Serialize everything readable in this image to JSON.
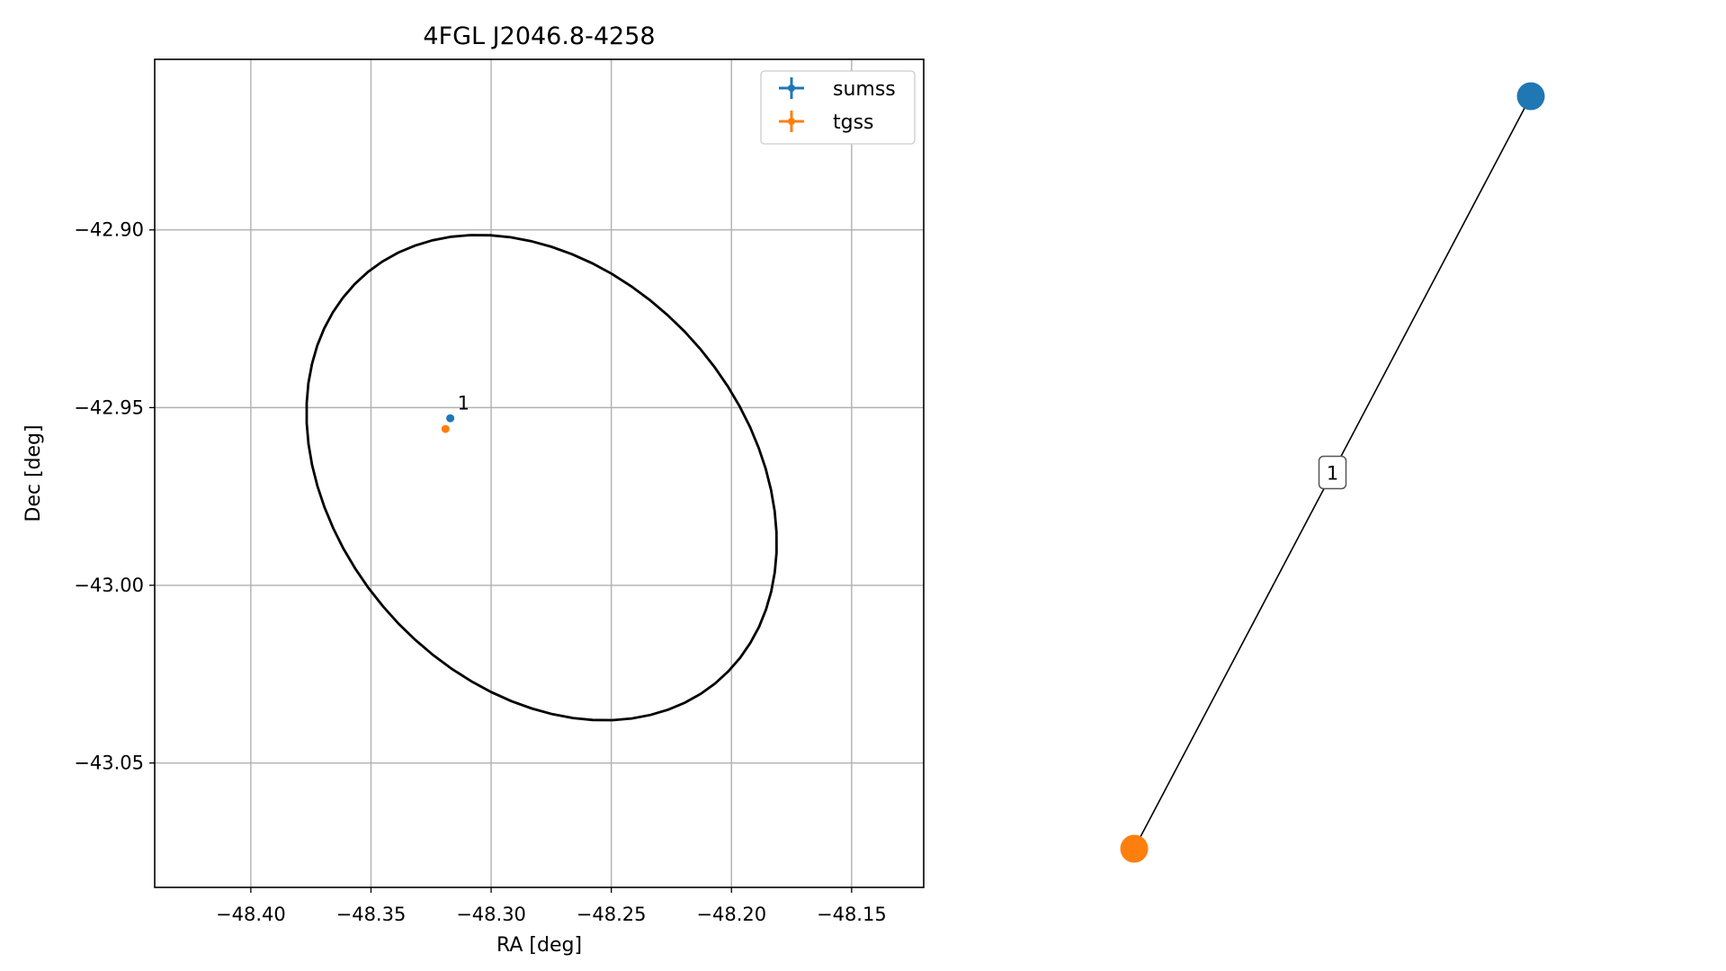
{
  "chart_data": [
    {
      "type": "scatter",
      "title": "4FGL J2046.8-4258",
      "xlabel": "RA [deg]",
      "ylabel": "Dec [deg]",
      "xlim": [
        -48.44,
        -48.12
      ],
      "ylim": [
        -43.085,
        -42.852
      ],
      "xticks": [
        -48.4,
        -48.35,
        -48.3,
        -48.25,
        -48.2,
        -48.15
      ],
      "xtick_labels": [
        "−48.40",
        "−48.35",
        "−48.30",
        "−48.25",
        "−48.20",
        "−48.15"
      ],
      "yticks": [
        -42.9,
        -42.95,
        -43.0,
        -43.05
      ],
      "ytick_labels": [
        "−42.90",
        "−42.95",
        "−43.00",
        "−43.05"
      ],
      "grid": true,
      "legend_position": "top-right",
      "series": [
        {
          "name": "sumss",
          "color": "#1f77b4",
          "marker": "errorbar",
          "points": [
            {
              "x": -48.317,
              "y": -42.953
            }
          ]
        },
        {
          "name": "tgss",
          "color": "#ff7f0e",
          "marker": "errorbar",
          "points": [
            {
              "x": -48.319,
              "y": -42.956
            }
          ]
        }
      ],
      "annotations": [
        {
          "text": "1",
          "x": -48.314,
          "y": -42.9505
        }
      ],
      "ellipse": {
        "center_ra": -48.279,
        "center_dec": -42.9697,
        "semi_major_deg": 0.0789,
        "semi_minor_deg": 0.0597,
        "angle_deg": 140,
        "color": "#000000"
      }
    },
    {
      "type": "graph",
      "nodes": [
        {
          "id": "sumss",
          "color": "#1f77b4",
          "x": 1.0,
          "y": 1.0
        },
        {
          "id": "tgss",
          "color": "#ff7f0e",
          "x": 0.0,
          "y": 0.0
        }
      ],
      "edges": [
        {
          "source": "sumss",
          "target": "tgss",
          "label": "1"
        }
      ]
    }
  ]
}
